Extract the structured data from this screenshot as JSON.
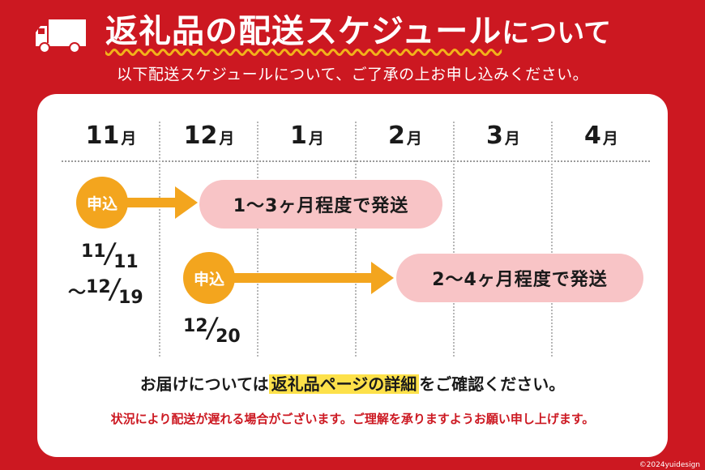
{
  "header": {
    "title": "返礼品の配送スケジュール",
    "title_suffix": "について",
    "subtitle": "以下配送スケジュールについて、ご了承の上お申し込みください。"
  },
  "months": [
    {
      "num": "11",
      "unit": "月"
    },
    {
      "num": "12",
      "unit": "月"
    },
    {
      "num": "1",
      "unit": "月"
    },
    {
      "num": "2",
      "unit": "月"
    },
    {
      "num": "3",
      "unit": "月"
    },
    {
      "num": "4",
      "unit": "月"
    }
  ],
  "schedule": [
    {
      "badge": "申込",
      "date_from_top": "11",
      "date_from_bottom": "11",
      "range_prefix": "～",
      "date_to_top": "12",
      "date_to_bottom": "19",
      "shipping": "1～3ヶ月程度で発送"
    },
    {
      "badge": "申込",
      "date_from_top": "12",
      "date_from_bottom": "20",
      "shipping": "2～4ヶ月程度で発送"
    }
  ],
  "notice": {
    "before": "お届けについては",
    "highlight": "返礼品ページの詳細",
    "after": "をご確認ください。"
  },
  "caution": "状況により配送が遅れる場合がございます。ご理解を承りますようお願い申し上げます。",
  "copyright": "©2024yuidesign",
  "colors": {
    "background": "#cc1821",
    "accent_orange": "#f3a51e",
    "pill_pink": "#f8c4c6",
    "highlight_yellow": "#fde14a"
  },
  "icons": {
    "truck": "truck-icon"
  }
}
